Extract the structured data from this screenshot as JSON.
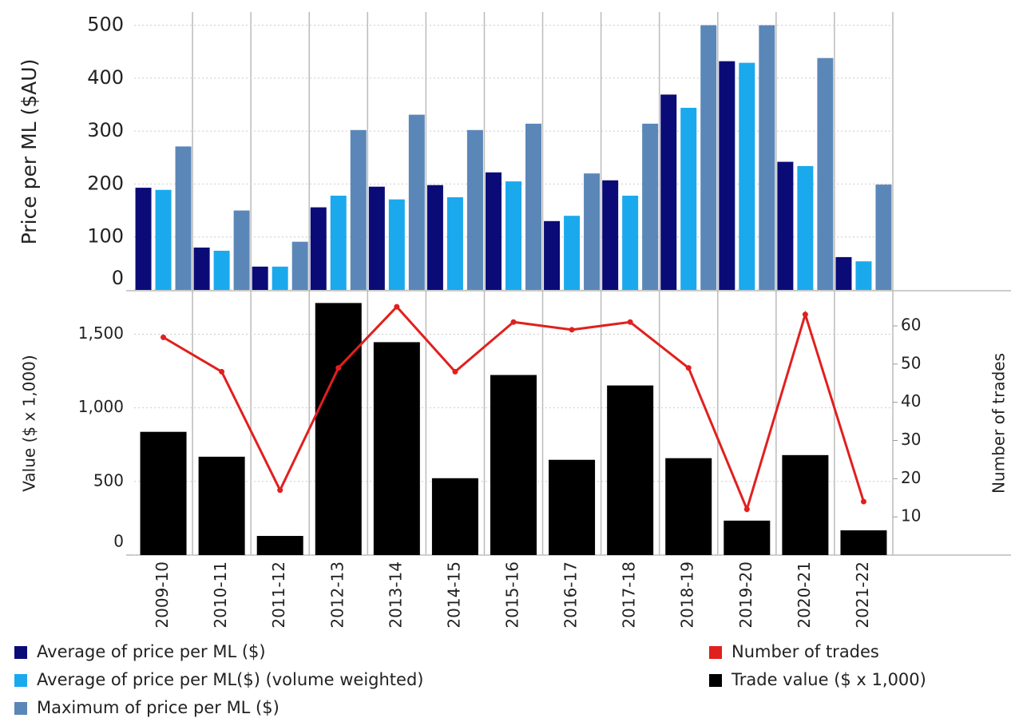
{
  "chart_data": [
    {
      "type": "bar",
      "ylabel": "Price per ML ($AU)",
      "categories": [
        "2009-10",
        "2010-11",
        "2011-12",
        "2012-13",
        "2013-14",
        "2014-15",
        "2015-16",
        "2016-17",
        "2017-18",
        "2018-19",
        "2019-20",
        "2020-21",
        "2021-22"
      ],
      "series": [
        {
          "name": "Average of price per ML ($)",
          "color": "#0b0b78",
          "values": [
            193,
            80,
            44,
            156,
            195,
            198,
            222,
            130,
            207,
            369,
            432,
            242,
            62
          ]
        },
        {
          "name": "Average of price per ML($) (volume weighted)",
          "color": "#1ba9ee",
          "values": [
            189,
            74,
            44,
            178,
            171,
            175,
            205,
            140,
            178,
            344,
            429,
            234,
            54
          ]
        },
        {
          "name": "Maximum of price per ML ($)",
          "color": "#5b87b8",
          "values": [
            271,
            150,
            91,
            302,
            331,
            302,
            314,
            220,
            314,
            500,
            500,
            438,
            199
          ]
        }
      ],
      "ylim": [
        0,
        525
      ],
      "yticks": [
        0,
        100,
        200,
        300,
        400,
        500
      ],
      "grid": true
    },
    {
      "type": "bar_line",
      "ylabel": "Value ($ x 1,000)",
      "y2label": "Number of trades",
      "series": [
        {
          "name": "Trade value ($ x 1,000)",
          "color": "#000000",
          "values": [
            837,
            668,
            130,
            1712,
            1446,
            522,
            1223,
            647,
            1152,
            658,
            234,
            679,
            168
          ]
        },
        {
          "name": "Number of trades",
          "color": "#e0201e",
          "axis": "y2",
          "values": [
            57,
            48,
            17,
            49,
            65,
            48,
            61,
            59,
            61,
            49,
            12,
            63,
            14
          ]
        }
      ],
      "ylim": [
        0,
        1790
      ],
      "yticks": [
        0,
        500,
        {
          "value": 1000,
          "label": "1,000"
        },
        {
          "value": 1500,
          "label": "1,500"
        }
      ],
      "y2lim": [
        0,
        69
      ],
      "y2ticks": [
        10,
        20,
        30,
        40,
        50,
        60
      ],
      "grid": true
    }
  ]
}
